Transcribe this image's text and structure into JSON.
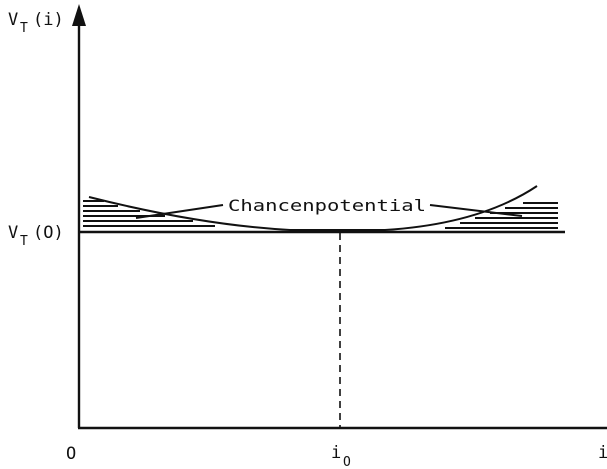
{
  "diagram": {
    "y_axis_label": "V",
    "y_axis_sub": "T",
    "y_axis_arg": "(i)",
    "v0_label": "V",
    "v0_sub": "T",
    "v0_arg": "(O)",
    "origin_label": "O",
    "x_mark_label": "i",
    "x_mark_sub": "O",
    "x_axis_label": "i",
    "callout_label": "Chancenpotential"
  },
  "colors": {
    "ink": "#111111",
    "background": "#ffffff"
  }
}
